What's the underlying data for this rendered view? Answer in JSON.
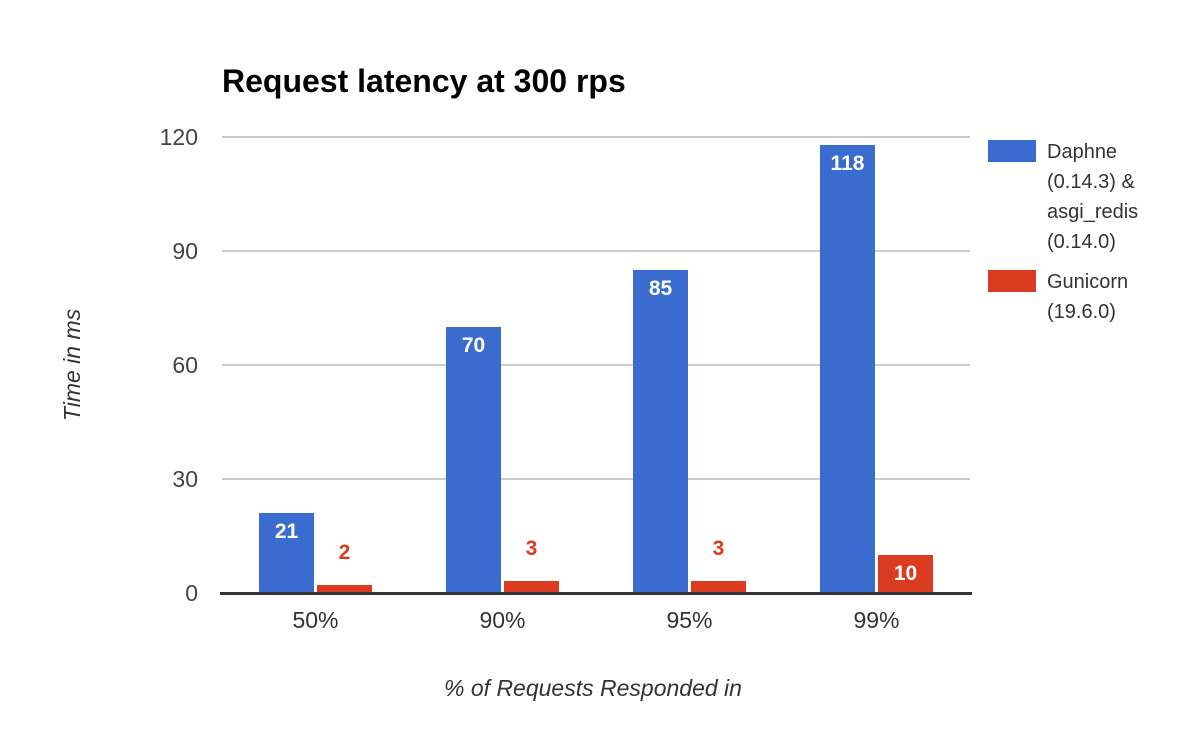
{
  "chart_data": {
    "type": "bar",
    "title": "Request latency at 300 rps",
    "xlabel": "% of Requests Responded in",
    "ylabel": "Time in ms",
    "categories": [
      "50%",
      "90%",
      "95%",
      "99%"
    ],
    "series": [
      {
        "name": "Daphne (0.14.3) & asgi_redis (0.14.0)",
        "color": "#3A6BCF",
        "values": [
          21,
          70,
          85,
          118
        ]
      },
      {
        "name": "Gunicorn (19.6.0)",
        "color": "#DB3B21",
        "values": [
          2,
          3,
          3,
          10
        ]
      }
    ],
    "ylim": [
      0,
      120
    ],
    "yticks": [
      0,
      30,
      60,
      90,
      120
    ],
    "grid": true,
    "legend_position": "right",
    "value_labels": "every bar labeled; white inside tall bars, series-colored above short bars"
  },
  "colors": {
    "background": "#ffffff",
    "series_daphne": "#3A6BCF",
    "series_gunicorn": "#DB3B21",
    "grid_line": "#cccccc",
    "axis_line": "#333333",
    "y_tick_text": "#444444",
    "x_tick_text": "#333333",
    "axis_title_text": "#333333",
    "title_text": "#000000",
    "legend_text": "#333333",
    "value_label_inside": "#ffffff"
  }
}
